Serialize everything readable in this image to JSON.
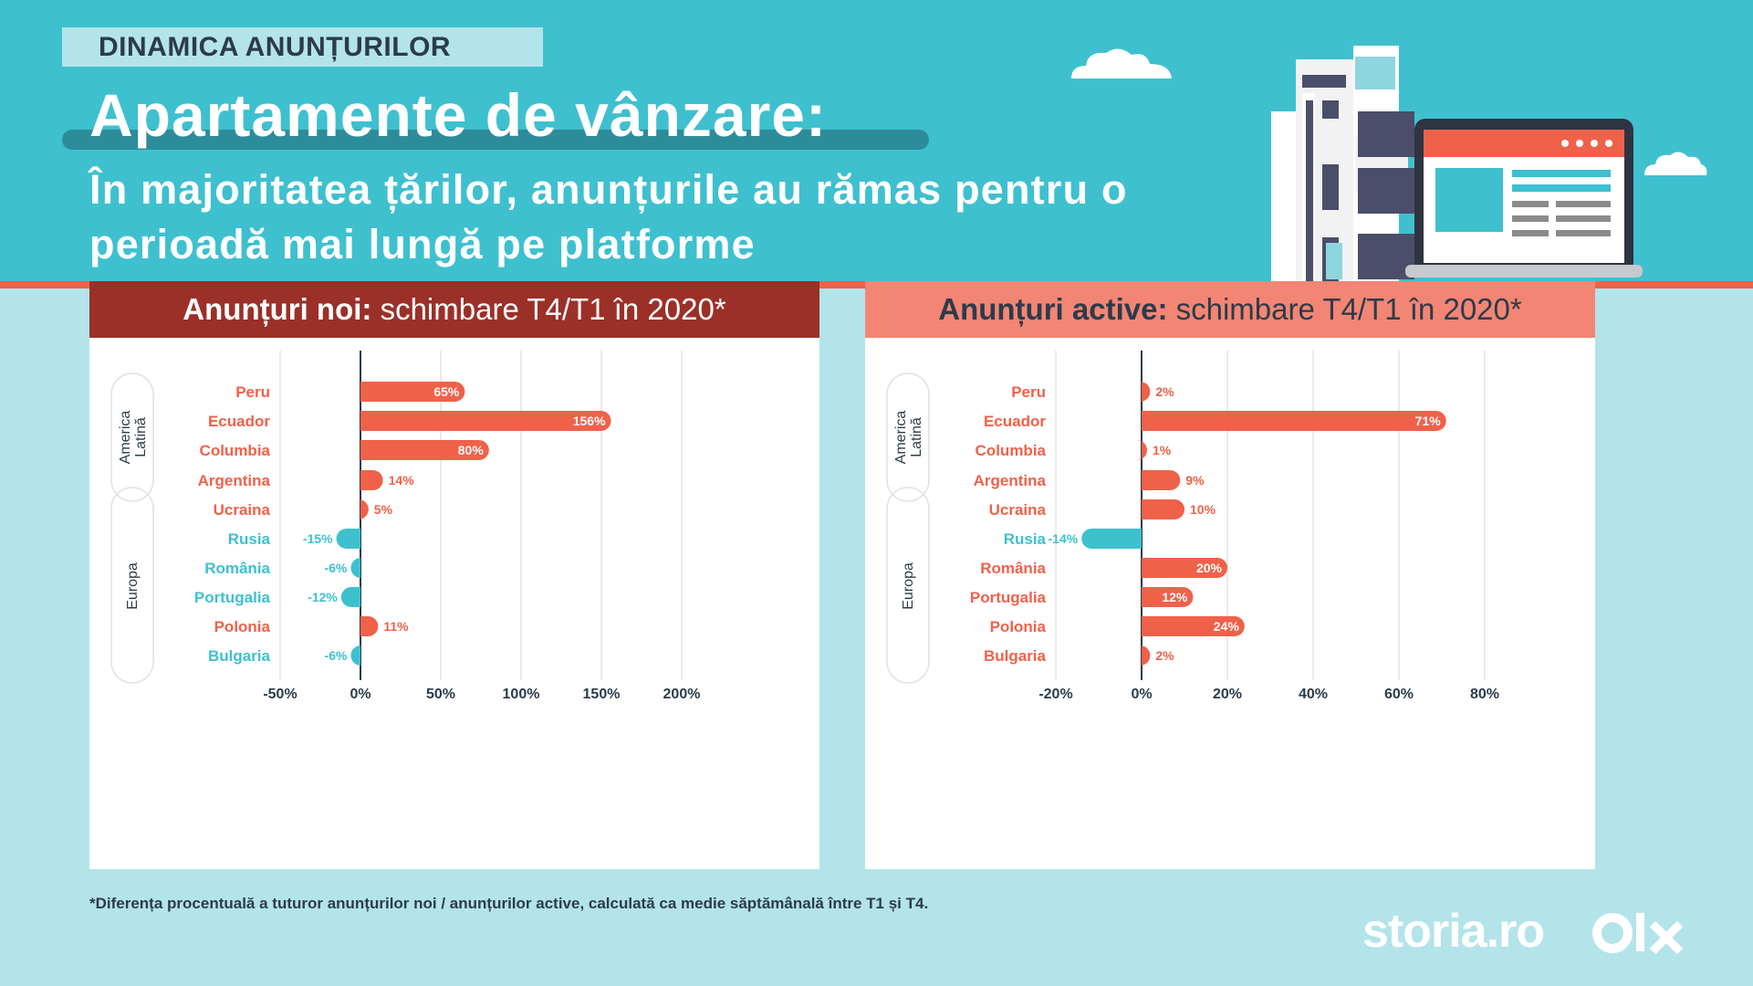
{
  "header": {
    "kicker": "DINAMICA ANUNȚURILOR",
    "title": "Apartamente de vânzare:",
    "subtitle": "În majoritatea țărilor, anunțurile au rămas pentru o perioadă mai lungă pe platforme"
  },
  "panels": [
    {
      "title_bold": "Anunțuri noi:",
      "title_rest": "schimbare T4/T1 în 2020*"
    },
    {
      "title_bold": "Anunțuri active:",
      "title_rest": "schimbare T4/T1 în 2020*"
    }
  ],
  "colors": {
    "positive": "#f0614a",
    "negative": "#3ec0cf",
    "dark": "#2c3b4a",
    "header": "#3ec0cf"
  },
  "chart_data": [
    {
      "type": "bar",
      "orientation": "horizontal",
      "title": "Anunțuri noi: schimbare T4/T1 în 2020*",
      "groups": [
        {
          "label": "America Latină",
          "categories": [
            "Peru",
            "Ecuador",
            "Columbia",
            "Argentina"
          ]
        },
        {
          "label": "Europa",
          "categories": [
            "Ucraina",
            "Rusia",
            "România",
            "Portugalia",
            "Polonia",
            "Bulgaria"
          ]
        }
      ],
      "categories": [
        "Peru",
        "Ecuador",
        "Columbia",
        "Argentina",
        "Ucraina",
        "Rusia",
        "România",
        "Portugalia",
        "Polonia",
        "Bulgaria"
      ],
      "values": [
        65,
        156,
        80,
        14,
        5,
        -15,
        -6,
        -12,
        11,
        -6
      ],
      "labels": [
        "65%",
        "156%",
        "80%",
        "14%",
        "5%",
        "-15%",
        "-6%",
        "-12%",
        "11%",
        "-6%"
      ],
      "xlim": [
        -50,
        200
      ],
      "xticks": [
        -50,
        0,
        50,
        100,
        150,
        200
      ],
      "xtick_labels": [
        "-50%",
        "0%",
        "50%",
        "100%",
        "150%",
        "200%"
      ],
      "unit": "%"
    },
    {
      "type": "bar",
      "orientation": "horizontal",
      "title": "Anunțuri active: schimbare T4/T1 în 2020*",
      "groups": [
        {
          "label": "America Latină",
          "categories": [
            "Peru",
            "Ecuador",
            "Columbia",
            "Argentina"
          ]
        },
        {
          "label": "Europa",
          "categories": [
            "Ucraina",
            "Rusia",
            "România",
            "Portugalia",
            "Polonia",
            "Bulgaria"
          ]
        }
      ],
      "categories": [
        "Peru",
        "Ecuador",
        "Columbia",
        "Argentina",
        "Ucraina",
        "Rusia",
        "România",
        "Portugalia",
        "Polonia",
        "Bulgaria"
      ],
      "values": [
        2,
        71,
        1,
        9,
        10,
        -14,
        20,
        12,
        24,
        2
      ],
      "labels": [
        "2%",
        "71%",
        "1%",
        "9%",
        "10%",
        "-14%",
        "20%",
        "12%",
        "24%",
        "2%"
      ],
      "xlim": [
        -20,
        80
      ],
      "xticks": [
        -20,
        0,
        20,
        40,
        60,
        80
      ],
      "xtick_labels": [
        "-20%",
        "0%",
        "20%",
        "40%",
        "60%",
        "80%"
      ],
      "unit": "%"
    }
  ],
  "footnote": "*Diferența procentuală a tuturor anunțurilor noi / anunțurilor active, calculată ca medie săptămânală între T1 și T4.",
  "logos": {
    "storia": "storia.ro",
    "olx": "OLX"
  }
}
